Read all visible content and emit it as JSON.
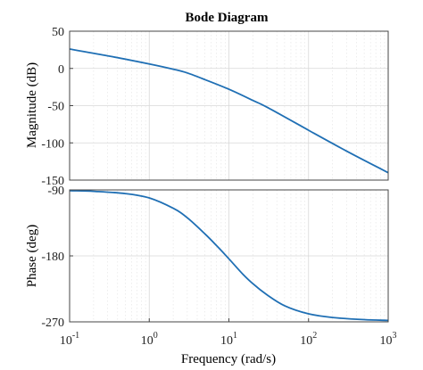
{
  "chart_data": [
    {
      "type": "line",
      "panel": "magnitude",
      "title": "Bode Diagram",
      "ylabel": "Magnitude (dB)",
      "xscale": "log",
      "xlim": [
        0.1,
        1000
      ],
      "ylim": [
        -150,
        50
      ],
      "yticks": [
        "50",
        "0",
        "-50",
        "-100",
        "-150"
      ],
      "grid": true,
      "series": [
        {
          "x": [
            0.1,
            0.3,
            1,
            2,
            3,
            5,
            10,
            20,
            30,
            100,
            300,
            1000
          ],
          "y": [
            26,
            17,
            6,
            -1,
            -6,
            -15,
            -28,
            -43,
            -52,
            -83,
            -111,
            -140
          ]
        }
      ]
    },
    {
      "type": "line",
      "panel": "phase",
      "xlabel": "Frequency (rad/s)",
      "ylabel": "Phase (deg)",
      "xscale": "log",
      "xlim": [
        0.1,
        1000
      ],
      "ylim": [
        -270,
        -90
      ],
      "yticks": [
        "-90",
        "-180",
        "-270"
      ],
      "xticks": [
        {
          "base": "10",
          "exp": "-1"
        },
        {
          "base": "10",
          "exp": "0"
        },
        {
          "base": "10",
          "exp": "1"
        },
        {
          "base": "10",
          "exp": "2"
        },
        {
          "base": "10",
          "exp": "3"
        }
      ],
      "grid": true,
      "series": [
        {
          "x": [
            0.1,
            0.2,
            0.5,
            1,
            2,
            3,
            5,
            7,
            10,
            15,
            20,
            30,
            50,
            100,
            200,
            500,
            1000
          ],
          "y": [
            -91,
            -92,
            -95,
            -101,
            -115,
            -128,
            -150,
            -166,
            -184,
            -205,
            -218,
            -233,
            -248,
            -259,
            -264,
            -267,
            -268
          ]
        }
      ]
    }
  ],
  "colors": {
    "curve": "#1f6fb4",
    "frame": "#444444",
    "grid": "#d8d8d8"
  }
}
